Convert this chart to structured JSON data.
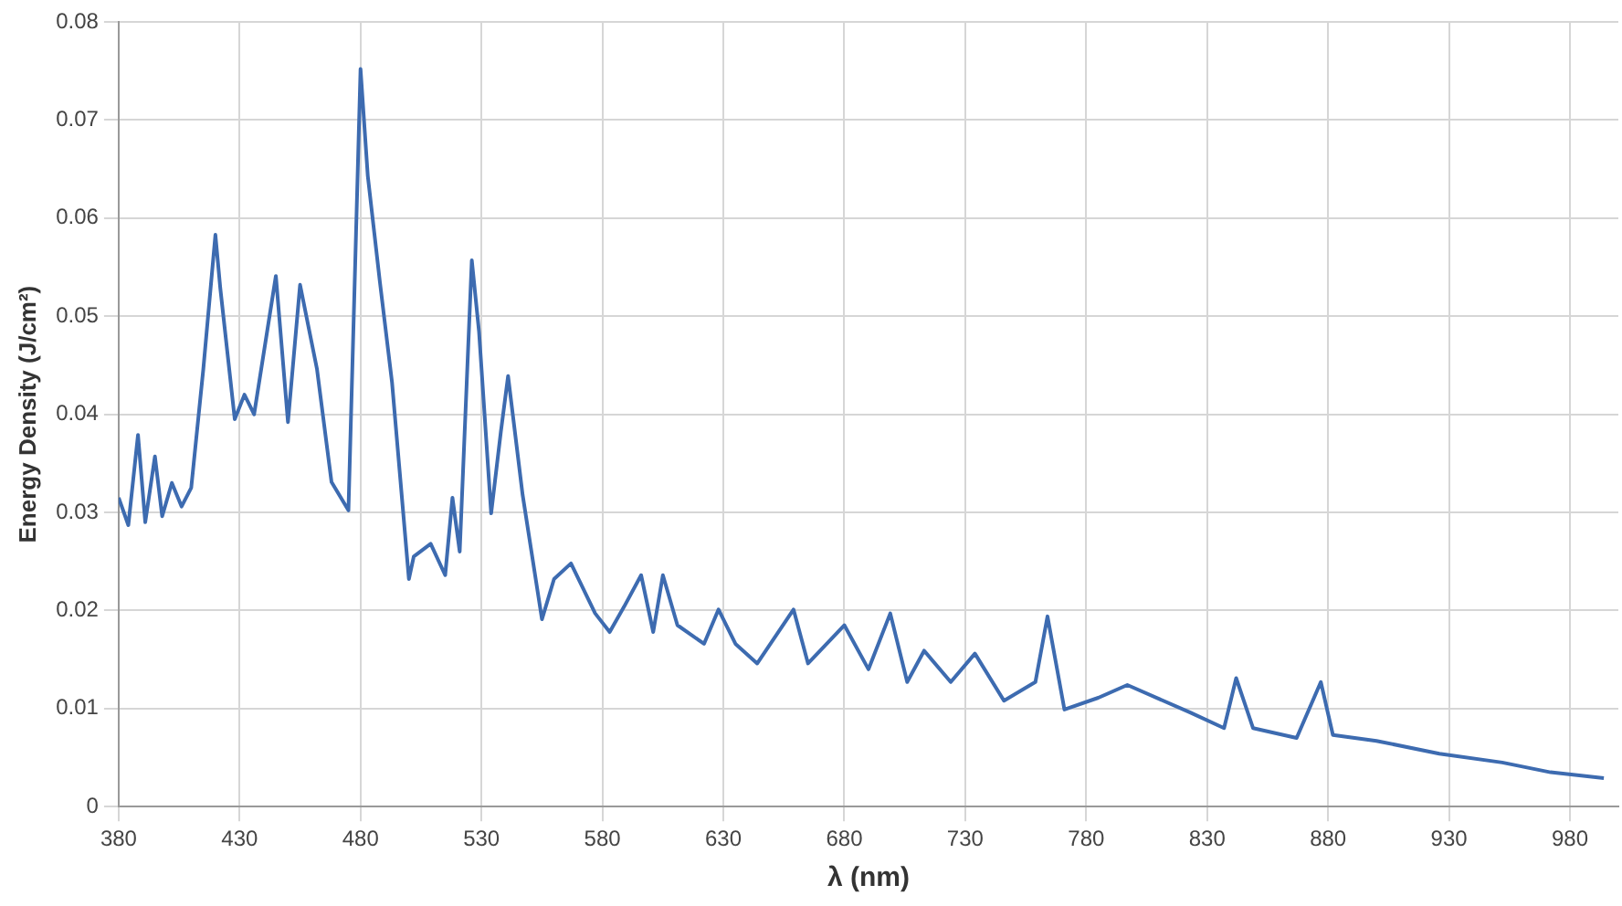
{
  "chart_data": {
    "type": "line",
    "xlabel": "λ (nm)",
    "ylabel": "Energy Density (J/cm²)",
    "x": [
      380,
      384,
      388,
      391,
      395,
      398,
      402,
      406,
      410,
      415,
      420,
      422,
      428,
      432,
      436,
      445,
      450,
      455,
      462,
      468,
      475,
      480,
      483,
      488,
      493,
      500,
      502,
      509,
      515,
      518,
      521,
      526,
      529,
      534,
      538,
      541,
      547,
      555,
      560,
      567,
      577,
      583,
      589,
      596,
      601,
      605,
      611,
      622,
      628,
      635,
      644,
      659,
      665,
      680,
      690,
      699,
      706,
      713,
      724,
      734,
      746,
      759,
      764,
      771,
      785,
      797,
      823,
      837,
      842,
      849,
      867,
      877,
      882,
      900,
      926,
      952,
      972,
      994
    ],
    "series": [
      {
        "color": "#3d6bb0",
        "values": [
          0.0315,
          0.0287,
          0.0379,
          0.029,
          0.0357,
          0.0296,
          0.033,
          0.0306,
          0.0325,
          0.0446,
          0.0583,
          0.0529,
          0.0395,
          0.042,
          0.04,
          0.0541,
          0.0392,
          0.0532,
          0.0446,
          0.0331,
          0.0302,
          0.0752,
          0.0643,
          0.0535,
          0.0433,
          0.0232,
          0.0255,
          0.0268,
          0.0236,
          0.0315,
          0.026,
          0.0557,
          0.0484,
          0.0299,
          0.0382,
          0.0439,
          0.0318,
          0.0191,
          0.0232,
          0.0248,
          0.0197,
          0.0178,
          0.0204,
          0.0236,
          0.0178,
          0.0236,
          0.0185,
          0.0166,
          0.0201,
          0.0166,
          0.0146,
          0.0201,
          0.0146,
          0.0185,
          0.014,
          0.0197,
          0.0127,
          0.0159,
          0.0127,
          0.0156,
          0.0108,
          0.0127,
          0.0194,
          0.0099,
          0.0111,
          0.0124,
          0.0096,
          0.008,
          0.0131,
          0.008,
          0.007,
          0.0127,
          0.0073,
          0.0067,
          0.0054,
          0.0045,
          0.0035,
          0.0029
        ]
      }
    ],
    "xlim": [
      380,
      1000
    ],
    "xticks": [
      380,
      430,
      480,
      530,
      580,
      630,
      680,
      730,
      780,
      830,
      880,
      930,
      980
    ],
    "ylim": [
      0,
      0.08
    ],
    "yticks": [
      0,
      0.01,
      0.02,
      0.03,
      0.04,
      0.05,
      0.06,
      0.07,
      0.08
    ],
    "grid": true,
    "legend": false,
    "marker": "none",
    "line_style": "solid"
  }
}
